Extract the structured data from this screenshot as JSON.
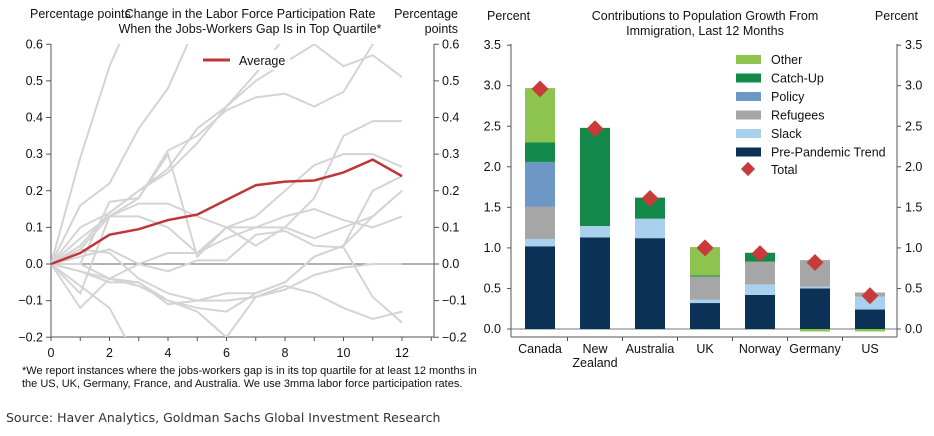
{
  "chart_data": [
    {
      "type": "line",
      "title": "Change in the Labor Force Participation Rate When the Jobs-Workers Gap Is in Top Quartile*",
      "ylabel_left": "Percentage points",
      "ylabel_right": "Percentage points",
      "xlim": [
        0,
        13
      ],
      "ylim": [
        -0.2,
        0.6
      ],
      "xticks": [
        "0",
        "2",
        "4",
        "6",
        "8",
        "10",
        "12"
      ],
      "yticks": [
        "0.6",
        "0.5",
        "0.4",
        "0.3",
        "0.2",
        "0.1",
        "0.0",
        "−0.1",
        "−0.2"
      ],
      "x": [
        0,
        1,
        2,
        3,
        4,
        5,
        6,
        7,
        8,
        9,
        10,
        11,
        12
      ],
      "average": {
        "name": "Average",
        "color": "#c0353a",
        "values": [
          0,
          0.03,
          0.08,
          0.095,
          0.12,
          0.135,
          0.175,
          0.215,
          0.225,
          0.228,
          0.25,
          0.285,
          0.24
        ]
      },
      "instances": [
        [
          0,
          0.29,
          0.54,
          0.72
        ],
        [
          0,
          0.16,
          0.22,
          0.37,
          0.48,
          0.66
        ],
        [
          0,
          0.1,
          0.14,
          0.2,
          0.25,
          0.33,
          0.43,
          0.52,
          0.62
        ],
        [
          0,
          0.07,
          0.13,
          0.18,
          0.31,
          0.35,
          0.42,
          0.455,
          0.465,
          0.43,
          0.47,
          0.6,
          0.7
        ],
        [
          0,
          0.05,
          0.14,
          0.2,
          0.26,
          0.37,
          0.43,
          0.5,
          0.55,
          0.6,
          0.54,
          0.57,
          0.51
        ],
        [
          0,
          0,
          0.17,
          0.18,
          0.3,
          0.02,
          0.1,
          0.13,
          0.2,
          0.27,
          0.3,
          0.3,
          0.265
        ],
        [
          0,
          -0.08,
          0.13,
          0.13,
          0.1,
          0.03,
          0.1,
          0.1,
          0.1,
          0.07,
          0.1,
          0.13,
          0.2
        ],
        [
          0,
          0.04,
          0.13,
          0.165,
          0.165,
          0.13,
          0.1,
          0.05,
          0.1,
          0.18,
          0.35,
          0.39,
          0.39
        ],
        [
          0,
          -0.12,
          -0.04,
          0,
          0.03,
          0.03,
          0.07,
          0.1,
          0.13,
          0.15,
          0.12,
          0.1,
          0.13
        ],
        [
          0,
          0.02,
          0.04,
          0,
          -0.02,
          0.01,
          0.01,
          0.08,
          0.09,
          0.05,
          0.045,
          -0.09,
          -0.16
        ],
        [
          0,
          0,
          -0.04,
          -0.05,
          -0.1,
          -0.12,
          -0.13,
          -0.08,
          -0.05,
          0.02,
          0.05,
          0.2,
          0.24
        ],
        [
          0,
          -0.02,
          -0.05,
          -0.05,
          -0.11,
          -0.1,
          -0.1,
          -0.09,
          -0.07,
          -0.03,
          -0.01,
          0,
          0
        ],
        [
          0,
          -0.06,
          -0.12,
          -0.27
        ],
        [
          0,
          -0.02,
          -0.04,
          -0.06,
          -0.1,
          -0.13,
          -0.2,
          -0.09,
          -0.06,
          -0.08,
          -0.12,
          -0.15,
          -0.13
        ],
        [
          0,
          0.04,
          0.03,
          -0.04,
          -0.08,
          -0.1,
          -0.08,
          -0.08,
          -0.05,
          0.02,
          0.05,
          0.13,
          0.2
        ]
      ],
      "legend": "top-center"
    },
    {
      "type": "bar",
      "stacked": true,
      "title": "Contributions to Population Growth From Immigration, Last 12 Months",
      "ylabel_left": "Percent",
      "ylabel_right": "Percent",
      "ylim": [
        0,
        3.5
      ],
      "yticks": [
        "0.0",
        "0.5",
        "1.0",
        "1.5",
        "2.0",
        "2.5",
        "3.0",
        "3.5"
      ],
      "categories": [
        [
          "Canada"
        ],
        [
          "New",
          "Zealand"
        ],
        [
          "Australia"
        ],
        [
          "UK"
        ],
        [
          "Norway"
        ],
        [
          "Germany"
        ],
        [
          "US"
        ]
      ],
      "series": [
        {
          "name": "Pre-Pandemic Trend",
          "color": "#0b3157",
          "values": [
            1.02,
            1.13,
            1.12,
            0.32,
            0.42,
            0.5,
            0.24
          ]
        },
        {
          "name": "Slack",
          "color": "#a9d1ee",
          "values": [
            0.09,
            0.14,
            0.24,
            0.04,
            0.13,
            0.02,
            0.16
          ]
        },
        {
          "name": "Refugees",
          "color": "#a6a6a6",
          "values": [
            0.4,
            0,
            0,
            0.29,
            0.28,
            0.33,
            0.05
          ]
        },
        {
          "name": "Policy",
          "color": "#6d97c5",
          "values": [
            0.55,
            0,
            0,
            0,
            0,
            0,
            0
          ]
        },
        {
          "name": "Catch-Up",
          "color": "#138a49",
          "values": [
            0.24,
            1.21,
            0.26,
            0.01,
            0.11,
            0,
            0
          ]
        },
        {
          "name": "Other",
          "color": "#8cc44f",
          "values": [
            0.67,
            0,
            0,
            0.35,
            0,
            -0.03,
            -0.03
          ]
        }
      ],
      "total": {
        "name": "Total",
        "color": "#c93a3a",
        "values": [
          2.96,
          2.47,
          1.61,
          1.0,
          0.93,
          0.82,
          0.41
        ]
      },
      "legend": "top-right"
    }
  ],
  "footnote": "*We report instances where the jobs-workers gap is in its top quartile for at least 12 months in the US, UK, Germany, France, and Australia. We use 3mma labor force participation rates.",
  "source": "Source: Haver Analytics, Goldman Sachs Global Investment Research"
}
